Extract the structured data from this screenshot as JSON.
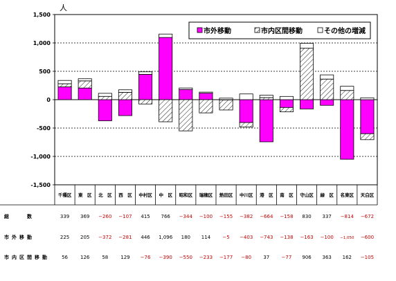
{
  "chart_data": {
    "type": "bar",
    "stacked": true,
    "unit_label": "人",
    "ylim": [
      -1500,
      1500
    ],
    "yticks": [
      "1,500",
      "1,000",
      "500",
      "0",
      "-500",
      "-1,000",
      "-1,500"
    ],
    "ytick_values": [
      1500,
      1000,
      500,
      0,
      -500,
      -1000,
      -1500
    ],
    "grid": "dashed horizontal",
    "legend_position": "top-right",
    "categories": [
      "千種区",
      "東　区",
      "北　区",
      "西　区",
      "中村区",
      "中　区",
      "昭和区",
      "瑞穂区",
      "熱田区",
      "中川区",
      "港　区",
      "南　区",
      "守山区",
      "緑　区",
      "名東区",
      "天白区"
    ],
    "series": [
      {
        "name": "市外移動",
        "color": "#ff00ff",
        "pattern": "solid",
        "values": [
          225,
          205,
          -372,
          -281,
          446,
          1096,
          180,
          114,
          -5,
          -403,
          -743,
          -138,
          -163,
          -100,
          -1050,
          -600
        ],
        "display": [
          "225",
          "205",
          "−372",
          "−281",
          "446",
          "1,096",
          "180",
          "114",
          "−5",
          "−403",
          "−743",
          "−138",
          "−163",
          "−100",
          "−1,050",
          "−600"
        ]
      },
      {
        "name": "市内区間移動",
        "color": "#000000",
        "pattern": "hatch",
        "values": [
          56,
          126,
          58,
          129,
          -76,
          -390,
          -550,
          -233,
          -177,
          -80,
          37,
          -77,
          906,
          363,
          162,
          -105
        ],
        "display": [
          "56",
          "126",
          "58",
          "129",
          "−76",
          "−390",
          "−550",
          "−233",
          "−177",
          "−80",
          "37",
          "−77",
          "906",
          "363",
          "162",
          "−105"
        ]
      },
      {
        "name": "その他の増減",
        "color": "#ffffff",
        "pattern": "outline",
        "values": [
          58,
          38,
          54,
          45,
          45,
          60,
          26,
          19,
          27,
          101,
          42,
          57,
          87,
          74,
          74,
          33
        ]
      }
    ],
    "totals": {
      "label": "総　　数",
      "values": [
        339,
        369,
        -260,
        -107,
        415,
        766,
        -344,
        -100,
        -155,
        -382,
        -664,
        -158,
        830,
        337,
        -814,
        -672
      ],
      "display": [
        "339",
        "369",
        "−260",
        "−107",
        "415",
        "766",
        "−344",
        "−100",
        "−155",
        "−382",
        "−664",
        "−158",
        "830",
        "337",
        "−814",
        "−672"
      ]
    },
    "row_labels": [
      "総　　数",
      "市外移動",
      "市内区間移動"
    ]
  }
}
